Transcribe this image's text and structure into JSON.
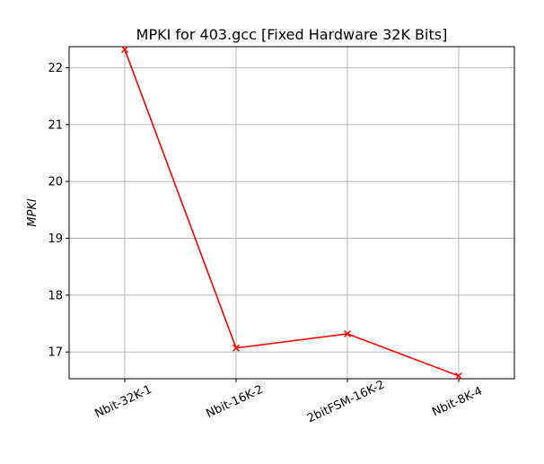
{
  "chart_data": {
    "type": "line",
    "title": "MPKI for 403.gcc [Fixed Hardware 32K Bits]",
    "xlabel": "",
    "ylabel": "MPKI",
    "categories": [
      "Nbit-32K-1",
      "Nbit-16K-2",
      "2bitFSM-16K-2",
      "Nbit-8K-4"
    ],
    "series": [
      {
        "values": [
          22.32,
          17.07,
          17.32,
          16.58
        ],
        "color": "#ff0000",
        "marker": "x"
      }
    ],
    "ylim": [
      16.53,
      22.37
    ],
    "yticks": [
      17,
      18,
      19,
      20,
      21,
      22
    ],
    "xtick_rotation": 25,
    "grid": true,
    "legend": false
  }
}
